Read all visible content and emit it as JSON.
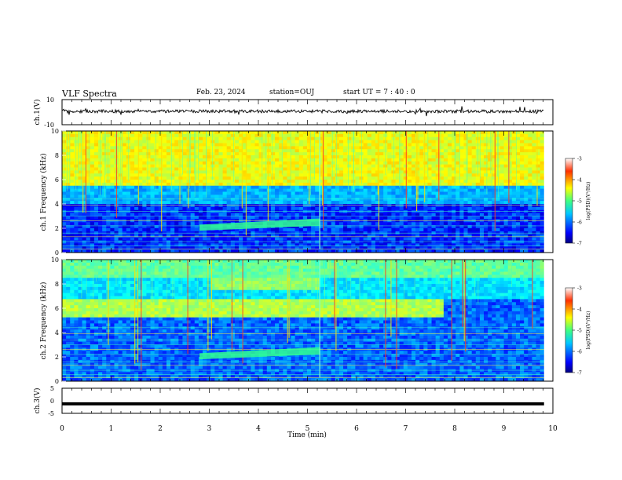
{
  "header": {
    "title": "VLF Spectra",
    "date": "Feb. 23, 2024",
    "station": "station=OUJ",
    "start_ut": "start UT =   7 : 40 : 0"
  },
  "chart_data": [
    {
      "type": "line",
      "ylabel": "ch.1(V)",
      "xlim": [
        0,
        10
      ],
      "ylim": [
        -10,
        10
      ],
      "yticks": [
        "10",
        "-10"
      ],
      "description_level": -1.5
    },
    {
      "type": "heatmap",
      "ylabel": "ch.1 Frequency (kHz)",
      "xlim": [
        0,
        10
      ],
      "ylim": [
        0,
        10
      ],
      "yticks": [
        "0",
        "2",
        "4",
        "6",
        "8",
        "10"
      ],
      "colorbar": {
        "label": "log(PSD)(V²/Hz)",
        "range": [
          -7,
          -3
        ],
        "ticks": [
          "-3",
          "-4",
          "-5",
          "-6",
          "-7"
        ]
      },
      "features": [
        {
          "name": "broadband_above_kHz",
          "value": 5.5
        },
        {
          "name": "rising_tone",
          "t_start": 2.8,
          "t_end": 5.25,
          "f_start": 1.8,
          "f_end": 2.2
        }
      ]
    },
    {
      "type": "heatmap",
      "ylabel": "ch.2 Frequency (kHz)",
      "xlim": [
        0,
        10
      ],
      "ylim": [
        0,
        10
      ],
      "yticks": [
        "0",
        "2",
        "4",
        "6",
        "8",
        "10"
      ],
      "colorbar": {
        "label": "log(PSD)(V²/Hz)",
        "range": [
          -7,
          -3
        ],
        "ticks": [
          "-3",
          "-4",
          "-5",
          "-6",
          "-7"
        ]
      },
      "features": [
        {
          "name": "band_6kHz",
          "t_start": 0,
          "t_end": 7.8,
          "f": 6.0
        },
        {
          "name": "band_8kHz",
          "t_start": 3.0,
          "t_end": 5.2,
          "f": 8.0
        },
        {
          "name": "rising_tone",
          "t_start": 2.8,
          "t_end": 5.25,
          "f_start": 1.8,
          "f_end": 2.2
        }
      ]
    },
    {
      "type": "line",
      "ylabel": "ch.3(V)",
      "xlim": [
        0,
        10
      ],
      "ylim": [
        -5,
        5
      ],
      "yticks": [
        "5",
        "0",
        "-5"
      ],
      "level": -1.2
    }
  ],
  "xaxis": {
    "label": "Time (min)",
    "ticks": [
      "0",
      "1",
      "2",
      "3",
      "4",
      "5",
      "6",
      "7",
      "8",
      "9",
      "10"
    ]
  }
}
